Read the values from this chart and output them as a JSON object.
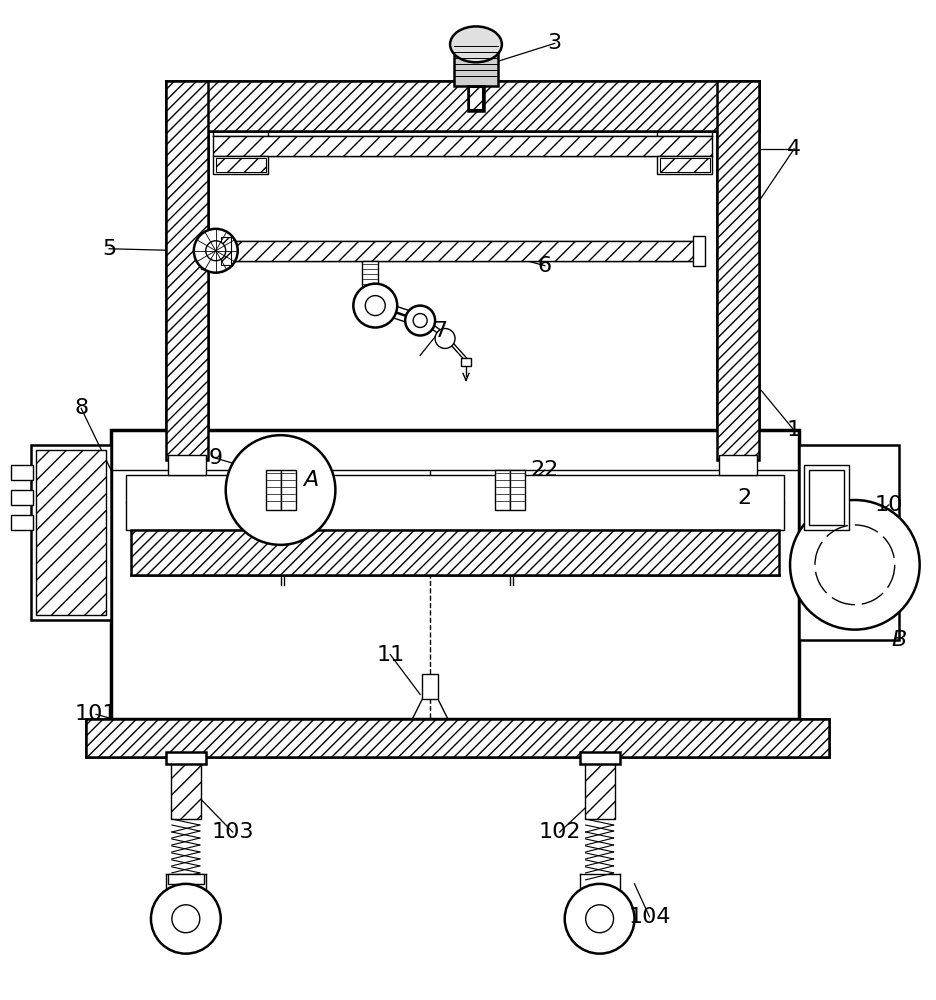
{
  "bg_color": "#ffffff",
  "line_color": "#000000",
  "label_fontsize": 16,
  "fig_width": 9.36,
  "fig_height": 10.0
}
